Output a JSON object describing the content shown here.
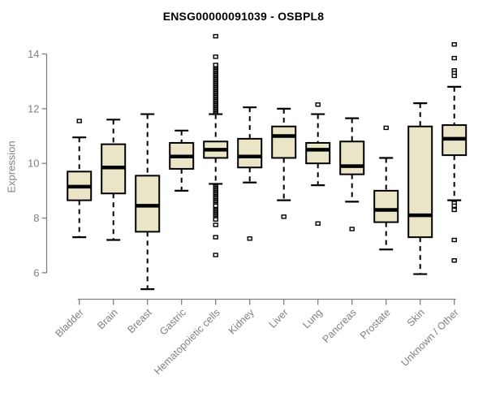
{
  "chart_data": {
    "type": "box",
    "title": "ENSG00000091039 - OSBPL8",
    "xlabel": "",
    "ylabel": "Expression",
    "ylim": [
      6,
      14
    ],
    "yticks": [
      6,
      8,
      10,
      12,
      14
    ],
    "grid": false,
    "legend": "none",
    "box_fill_color": "#EBE5C7",
    "box_stroke_color": "#000000",
    "axis_color": "#808080",
    "title_color": "#000000",
    "categories": [
      "Bladder",
      "Brain",
      "Breast",
      "Gastric",
      "Hematopoietic cells",
      "Kidney",
      "Liver",
      "Lung",
      "Pancreas",
      "Prostate",
      "Skin",
      "Unknown / Other"
    ],
    "boxes": [
      {
        "category": "Bladder",
        "whisker_low": 7.3,
        "q1": 8.65,
        "median": 9.15,
        "q3": 9.7,
        "whisker_high": 10.95,
        "outliers": [
          11.55
        ]
      },
      {
        "category": "Brain",
        "whisker_low": 7.2,
        "q1": 8.9,
        "median": 9.85,
        "q3": 10.7,
        "whisker_high": 11.6,
        "outliers": []
      },
      {
        "category": "Breast",
        "whisker_low": 5.4,
        "q1": 7.5,
        "median": 8.45,
        "q3": 9.55,
        "whisker_high": 11.8,
        "outliers": []
      },
      {
        "category": "Gastric",
        "whisker_low": 9.0,
        "q1": 9.8,
        "median": 10.25,
        "q3": 10.75,
        "whisker_high": 11.2,
        "outliers": []
      },
      {
        "category": "Hematopoietic cells",
        "whisker_low": 9.25,
        "q1": 10.2,
        "median": 10.5,
        "q3": 10.8,
        "whisker_high": 11.8,
        "outliers": [
          11.85,
          11.9,
          11.95,
          12.0,
          12.05,
          12.1,
          12.15,
          12.2,
          12.25,
          12.3,
          12.35,
          12.4,
          12.45,
          12.5,
          12.55,
          12.6,
          12.65,
          12.7,
          12.75,
          12.8,
          12.85,
          12.9,
          12.95,
          13.0,
          13.05,
          13.1,
          13.15,
          13.2,
          13.25,
          13.3,
          13.35,
          13.4,
          13.45,
          13.5,
          13.55,
          13.6,
          13.9,
          14.65,
          9.15,
          9.1,
          9.05,
          9.0,
          8.95,
          8.9,
          8.85,
          8.8,
          8.75,
          8.7,
          8.65,
          8.6,
          8.55,
          8.5,
          8.45,
          8.3,
          8.25,
          8.2,
          8.15,
          8.1,
          8.05,
          8.0,
          7.95,
          7.75,
          7.3,
          6.65
        ]
      },
      {
        "category": "Kidney",
        "whisker_low": 9.3,
        "q1": 9.85,
        "median": 10.25,
        "q3": 10.9,
        "whisker_high": 12.05,
        "outliers": [
          7.25
        ]
      },
      {
        "category": "Liver",
        "whisker_low": 8.65,
        "q1": 10.2,
        "median": 11.0,
        "q3": 11.35,
        "whisker_high": 12.0,
        "outliers": [
          8.05
        ]
      },
      {
        "category": "Lung",
        "whisker_low": 9.2,
        "q1": 10.0,
        "median": 10.5,
        "q3": 10.75,
        "whisker_high": 11.8,
        "outliers": [
          12.15,
          7.8
        ]
      },
      {
        "category": "Pancreas",
        "whisker_low": 8.6,
        "q1": 9.6,
        "median": 9.9,
        "q3": 10.8,
        "whisker_high": 11.65,
        "outliers": [
          7.6
        ]
      },
      {
        "category": "Prostate",
        "whisker_low": 6.85,
        "q1": 7.85,
        "median": 8.3,
        "q3": 9.0,
        "whisker_high": 10.2,
        "outliers": [
          11.3
        ]
      },
      {
        "category": "Skin",
        "whisker_low": 5.95,
        "q1": 7.3,
        "median": 8.1,
        "q3": 11.35,
        "whisker_high": 12.2,
        "outliers": []
      },
      {
        "category": "Unknown / Other",
        "whisker_low": 8.65,
        "q1": 10.3,
        "median": 10.9,
        "q3": 11.4,
        "whisker_high": 12.8,
        "outliers": [
          14.35,
          13.85,
          13.4,
          13.3,
          13.2,
          8.55,
          8.45,
          8.3,
          7.2,
          6.45
        ]
      }
    ]
  }
}
